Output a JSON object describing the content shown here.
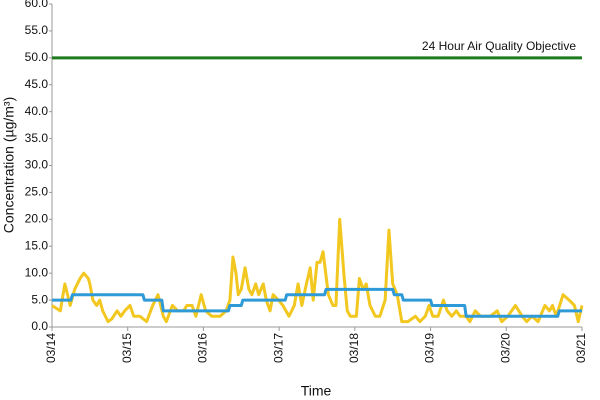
{
  "chart_data": {
    "type": "line",
    "y_label": "Concentration (µg/m³)",
    "x_label": "Time",
    "annotation": "24 Hour Air Quality Objective",
    "xlim": [
      0,
      7
    ],
    "xticks": [
      {
        "value": 0,
        "label": "03/14"
      },
      {
        "value": 1,
        "label": "03/15"
      },
      {
        "value": 2,
        "label": "03/16"
      },
      {
        "value": 3,
        "label": "03/17"
      },
      {
        "value": 4,
        "label": "03/18"
      },
      {
        "value": 5,
        "label": "03/19"
      },
      {
        "value": 6,
        "label": "03/20"
      },
      {
        "value": 7,
        "label": "03/21"
      }
    ],
    "ylim": [
      0,
      60
    ],
    "yticks": [
      {
        "value": 0,
        "label": "0.0"
      },
      {
        "value": 5,
        "label": "5.0"
      },
      {
        "value": 10,
        "label": "10.0"
      },
      {
        "value": 15,
        "label": "15.0"
      },
      {
        "value": 20,
        "label": "20.0"
      },
      {
        "value": 25,
        "label": "25.0"
      },
      {
        "value": 30,
        "label": "30.0"
      },
      {
        "value": 35,
        "label": "35.0"
      },
      {
        "value": 40,
        "label": "40.0"
      },
      {
        "value": 45,
        "label": "45.0"
      },
      {
        "value": 50,
        "label": "50.0"
      },
      {
        "value": 55,
        "label": "55.0"
      },
      {
        "value": 60,
        "label": "60.0"
      }
    ],
    "grid": false,
    "series": [
      {
        "color": "#1e7a1e",
        "x": [
          0,
          7
        ],
        "values": [
          50,
          50
        ]
      },
      {
        "color": "#f2c71f",
        "x": [
          0,
          0.11,
          0.17,
          0.24,
          0.3,
          0.37,
          0.42,
          0.48,
          0.5,
          0.54,
          0.59,
          0.63,
          0.67,
          0.74,
          0.79,
          0.86,
          0.91,
          0.96,
          1.03,
          1.08,
          1.16,
          1.25,
          1.33,
          1.4,
          1.47,
          1.51,
          1.59,
          1.66,
          1.74,
          1.78,
          1.85,
          1.9,
          1.97,
          2.03,
          2.11,
          2.22,
          2.3,
          2.35,
          2.39,
          2.43,
          2.46,
          2.5,
          2.55,
          2.6,
          2.64,
          2.69,
          2.73,
          2.79,
          2.83,
          2.88,
          2.92,
          2.99,
          3.05,
          3.13,
          3.2,
          3.25,
          3.3,
          3.36,
          3.41,
          3.45,
          3.5,
          3.54,
          3.58,
          3.65,
          3.71,
          3.75,
          3.8,
          3.86,
          3.9,
          3.94,
          4.02,
          4.06,
          4.11,
          4.15,
          4.2,
          4.27,
          4.33,
          4.4,
          4.45,
          4.5,
          4.56,
          4.62,
          4.7,
          4.8,
          4.86,
          4.93,
          4.98,
          5.03,
          5.1,
          5.17,
          5.22,
          5.28,
          5.34,
          5.39,
          5.47,
          5.52,
          5.59,
          5.66,
          5.79,
          5.88,
          5.94,
          6.02,
          6.12,
          6.21,
          6.27,
          6.34,
          6.42,
          6.51,
          6.57,
          6.61,
          6.66,
          6.75,
          6.83,
          6.9,
          6.95,
          7.0
        ],
        "values": [
          4,
          3,
          8,
          4,
          7,
          9,
          10,
          9,
          8,
          5,
          4,
          5,
          3,
          1,
          1.5,
          3,
          2,
          3,
          4,
          2,
          2,
          1,
          4,
          6,
          2,
          1,
          4,
          3,
          3,
          4,
          4,
          2,
          6,
          3,
          2,
          2,
          3,
          5,
          13,
          10,
          6,
          7,
          11,
          7,
          6,
          8,
          6,
          8,
          5,
          3,
          6,
          5,
          4,
          2,
          4,
          8,
          4,
          8,
          11,
          5,
          12,
          12,
          14,
          6,
          4,
          4,
          20,
          9,
          3,
          2,
          2,
          9,
          7,
          8,
          4,
          2,
          2,
          5,
          18,
          8,
          6,
          1,
          1,
          2,
          1,
          2,
          4,
          2,
          2,
          5,
          3,
          2,
          3,
          2,
          2,
          1,
          3,
          2,
          2,
          3,
          1,
          2,
          4,
          2,
          1,
          2,
          1,
          4,
          3,
          4,
          2,
          6,
          5,
          4,
          1,
          4
        ]
      },
      {
        "color": "#2e9ad8",
        "x": [
          0,
          0.25,
          0.27,
          1.2,
          1.22,
          1.45,
          1.47,
          2.33,
          2.35,
          2.5,
          2.52,
          3.08,
          3.1,
          3.6,
          3.62,
          4.5,
          4.52,
          4.62,
          4.64,
          5.0,
          5.02,
          5.45,
          5.47,
          6.68,
          6.7,
          7
        ],
        "values": [
          5,
          5,
          6,
          6,
          5,
          5,
          3,
          3,
          4,
          4,
          5,
          5,
          6,
          6,
          7,
          7,
          6,
          6,
          5,
          5,
          4,
          4,
          2,
          2,
          3,
          3
        ]
      }
    ]
  }
}
